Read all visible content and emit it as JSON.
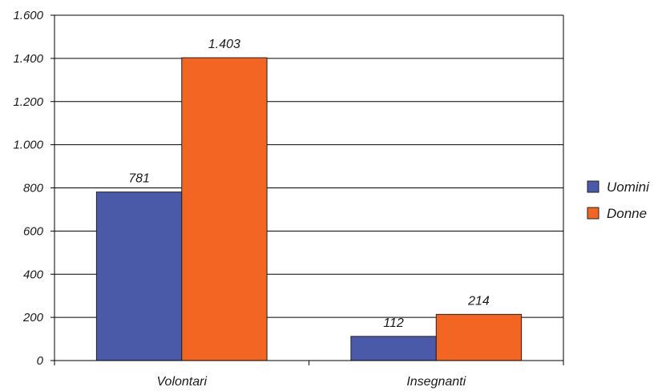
{
  "chart_data": {
    "type": "bar",
    "categories": [
      "Volontari",
      "Insegnanti"
    ],
    "series": [
      {
        "name": "Uomini",
        "values": [
          781,
          112
        ],
        "value_labels": [
          "781",
          "112"
        ],
        "color": "#4a5aa8"
      },
      {
        "name": "Donne",
        "values": [
          1403,
          214
        ],
        "value_labels": [
          "1.403",
          "214"
        ],
        "color": "#f26522"
      }
    ],
    "y_ticks": [
      0,
      200,
      400,
      600,
      800,
      1000,
      1200,
      1400,
      1600
    ],
    "y_tick_labels": [
      "0",
      "200",
      "400",
      "600",
      "800",
      "1.000",
      "1.200",
      "1.400",
      "1.600"
    ],
    "ylim": [
      0,
      1600
    ],
    "grid": true,
    "legend_position": "right",
    "title": "",
    "xlabel": "",
    "ylabel": ""
  }
}
